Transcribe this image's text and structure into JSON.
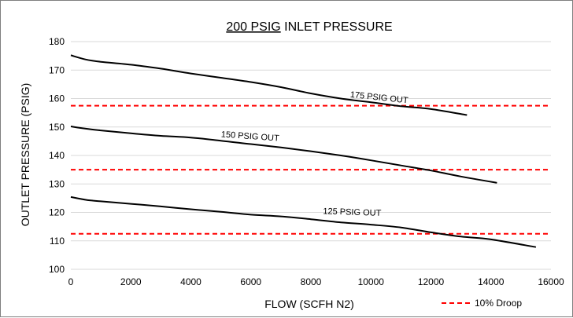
{
  "chart_data": {
    "type": "line",
    "title": {
      "underlined_part": "200 PSIG",
      "rest": " INLET PRESSURE"
    },
    "xlabel": "FLOW (SCFH N2)",
    "ylabel": "OUTLET PRESSURE (PSIG)",
    "xlim": [
      0,
      16000
    ],
    "ylim": [
      100,
      180
    ],
    "xticks": [
      0,
      2000,
      4000,
      6000,
      8000,
      10000,
      12000,
      14000,
      16000
    ],
    "yticks": [
      100,
      110,
      120,
      130,
      140,
      150,
      160,
      170,
      180
    ],
    "grid": "horizontal",
    "series": [
      {
        "name": "175 PSIG OUT",
        "color": "#000000",
        "points": [
          [
            0,
            175.2
          ],
          [
            500,
            173.7
          ],
          [
            1000,
            172.9
          ],
          [
            2000,
            171.9
          ],
          [
            3000,
            170.5
          ],
          [
            4000,
            168.8
          ],
          [
            5000,
            167.3
          ],
          [
            6000,
            165.8
          ],
          [
            7000,
            164.0
          ],
          [
            8000,
            161.8
          ],
          [
            9000,
            160.0
          ],
          [
            10000,
            158.7
          ],
          [
            11000,
            157.3
          ],
          [
            12000,
            156.3
          ],
          [
            13200,
            154.2
          ]
        ]
      },
      {
        "name": "150 PSIG OUT",
        "color": "#000000",
        "points": [
          [
            0,
            150.2
          ],
          [
            500,
            149.4
          ],
          [
            1000,
            148.8
          ],
          [
            2000,
            147.8
          ],
          [
            3000,
            146.9
          ],
          [
            4000,
            146.3
          ],
          [
            5000,
            145.2
          ],
          [
            6000,
            144.0
          ],
          [
            7000,
            142.8
          ],
          [
            8000,
            141.5
          ],
          [
            9000,
            140.0
          ],
          [
            10000,
            138.3
          ],
          [
            11000,
            136.5
          ],
          [
            12000,
            134.7
          ],
          [
            13000,
            132.6
          ],
          [
            14200,
            130.4
          ]
        ]
      },
      {
        "name": "125 PSIG OUT",
        "color": "#000000",
        "points": [
          [
            0,
            125.4
          ],
          [
            500,
            124.4
          ],
          [
            1000,
            123.9
          ],
          [
            2000,
            123.0
          ],
          [
            3000,
            122.1
          ],
          [
            4000,
            121.1
          ],
          [
            5000,
            120.2
          ],
          [
            6000,
            119.2
          ],
          [
            7000,
            118.6
          ],
          [
            8000,
            117.6
          ],
          [
            9000,
            116.5
          ],
          [
            10000,
            115.7
          ],
          [
            11000,
            114.7
          ],
          [
            12000,
            113.0
          ],
          [
            13000,
            111.5
          ],
          [
            14000,
            110.5
          ],
          [
            15500,
            107.8
          ]
        ]
      }
    ],
    "droop_lines": {
      "name": "10% Droop",
      "color": "#ff0000",
      "values": [
        157.5,
        135,
        112.5
      ]
    },
    "curve_labels": [
      {
        "text": "175 PSIG OUT",
        "x": 9300,
        "y": 160.5,
        "angle": 6
      },
      {
        "text": "150 PSIG OUT",
        "x": 5000,
        "y": 146.5,
        "angle": 4
      },
      {
        "text": "125 PSIG OUT",
        "x": 8400,
        "y": 119.5,
        "angle": 2
      }
    ],
    "legend_position": "bottom-right"
  }
}
